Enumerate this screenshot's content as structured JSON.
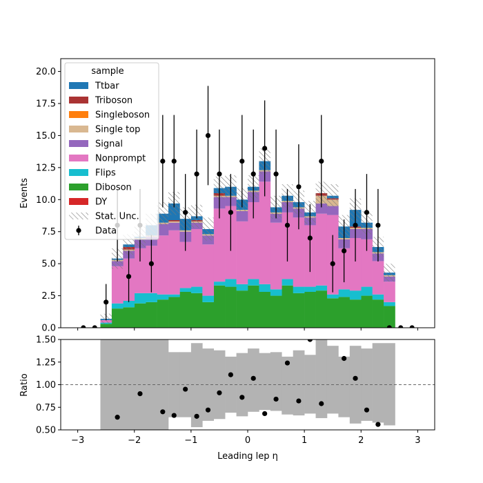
{
  "chart_data": [
    {
      "type": "stacked-histogram",
      "ylabel": "Events",
      "ylim": [
        0,
        21.0
      ],
      "yticks": [
        0.0,
        2.5,
        5.0,
        7.5,
        10.0,
        12.5,
        15.0,
        17.5,
        20.0
      ],
      "ytick_labels": [
        "0.0",
        "2.5",
        "5.0",
        "7.5",
        "10.0",
        "12.5",
        "15.0",
        "17.5",
        "20.0"
      ],
      "xlim": [
        -3.3,
        3.3
      ],
      "bin_edges": [
        -2.6,
        -2.4,
        -2.2,
        -2.0,
        -1.8,
        -1.6,
        -1.4,
        -1.2,
        -1.0,
        -0.8,
        -0.6,
        -0.4,
        -0.2,
        0.0,
        0.2,
        0.4,
        0.6,
        0.8,
        1.0,
        1.2,
        1.4,
        1.6,
        1.8,
        2.0,
        2.2,
        2.4,
        2.6
      ],
      "series": [
        {
          "name": "DY",
          "color": "#d62728",
          "values": [
            0,
            0,
            0,
            0,
            0,
            0,
            0,
            0,
            0,
            0,
            0,
            0,
            0,
            0,
            0,
            0,
            0,
            0,
            0,
            0,
            0,
            0,
            0,
            0,
            0,
            0
          ]
        },
        {
          "name": "Diboson",
          "color": "#2ca02c",
          "values": [
            0.3,
            1.5,
            1.6,
            1.9,
            2.0,
            2.2,
            2.4,
            2.8,
            2.7,
            2.0,
            3.3,
            3.2,
            2.9,
            3.3,
            2.8,
            2.5,
            3.3,
            2.7,
            2.8,
            2.9,
            2.3,
            2.4,
            2.2,
            2.5,
            2.2,
            1.7
          ]
        },
        {
          "name": "Flips",
          "color": "#17becf",
          "values": [
            0.1,
            0.4,
            0.5,
            0.8,
            0.7,
            0.4,
            0.2,
            0.3,
            0.5,
            0.5,
            0.3,
            0.6,
            0.5,
            0.5,
            0.6,
            0.5,
            0.5,
            0.5,
            0.4,
            0.4,
            0.3,
            0.6,
            0.7,
            0.7,
            0.4,
            0.3
          ]
        },
        {
          "name": "Nonprompt",
          "color": "#e377c2",
          "values": [
            0.2,
            2.9,
            3.3,
            3.5,
            3.7,
            4.6,
            5.0,
            3.6,
            4.5,
            4.0,
            5.7,
            5.7,
            4.9,
            6.0,
            8.0,
            5.2,
            5.2,
            5.4,
            4.8,
            5.6,
            6.2,
            3.2,
            4.1,
            3.7,
            2.6,
            1.6
          ]
        },
        {
          "name": "Signal",
          "color": "#9467bd",
          "values": [
            0.0,
            0.4,
            0.6,
            0.7,
            0.7,
            0.9,
            0.6,
            0.8,
            0.5,
            0.7,
            0.9,
            0.7,
            0.8,
            0.8,
            0.8,
            0.7,
            0.8,
            0.7,
            0.6,
            0.8,
            0.7,
            0.7,
            0.7,
            0.8,
            0.6,
            0.4
          ]
        },
        {
          "name": "Single top",
          "color": "#d9b891",
          "values": [
            0.0,
            0.1,
            0.1,
            0.1,
            0.1,
            0.1,
            0.1,
            0.1,
            0.1,
            0.1,
            0.1,
            0.1,
            0.1,
            0.1,
            0.1,
            0.1,
            0.1,
            0.1,
            0.1,
            0.6,
            0.5,
            0.1,
            0.1,
            0.1,
            0.1,
            0.1
          ]
        },
        {
          "name": "Singleboson",
          "color": "#ff7f0e",
          "values": [
            0,
            0,
            0,
            0,
            0,
            0,
            0,
            0,
            0,
            0,
            0,
            0,
            0,
            0,
            0,
            0,
            0,
            0,
            0,
            0,
            0,
            0,
            0,
            0,
            0,
            0
          ]
        },
        {
          "name": "Triboson",
          "color": "#aa3333",
          "values": [
            0.0,
            0.0,
            0.2,
            0.0,
            0.0,
            0.0,
            0.1,
            0.0,
            0.1,
            0.0,
            0.2,
            0.0,
            0.0,
            0.0,
            0.0,
            0.0,
            0.0,
            0.0,
            0.0,
            0.2,
            0.1,
            0.0,
            0.1,
            0.0,
            0.0,
            0.0
          ]
        },
        {
          "name": "Ttbar",
          "color": "#1f77b4",
          "values": [
            0.1,
            0.1,
            0.2,
            0.1,
            0.8,
            0.7,
            1.3,
            0.9,
            0.3,
            0.4,
            0.4,
            0.7,
            0.8,
            0.3,
            0.7,
            0.4,
            0.4,
            0.4,
            0.3,
            0.0,
            0.2,
            0.9,
            1.3,
            0.4,
            0.4,
            0.2
          ]
        }
      ],
      "unc_label": "Stat. Unc.",
      "unc_values": [
        0.4,
        0.8,
        0.8,
        0.8,
        0.9,
        0.9,
        0.9,
        0.9,
        0.9,
        0.9,
        0.9,
        0.9,
        0.9,
        0.9,
        1.0,
        0.9,
        0.9,
        0.9,
        0.9,
        0.9,
        0.9,
        0.9,
        0.9,
        0.9,
        0.8,
        0.7
      ],
      "data_label": "Data",
      "data_x": [
        -2.9,
        -2.7,
        -2.5,
        -2.3,
        -2.1,
        -1.9,
        -1.7,
        -1.5,
        -1.3,
        -1.1,
        -0.9,
        -0.7,
        -0.5,
        -0.3,
        -0.1,
        0.1,
        0.3,
        0.5,
        0.7,
        0.9,
        1.1,
        1.3,
        1.5,
        1.7,
        1.9,
        2.1,
        2.3,
        2.5,
        2.7,
        2.9
      ],
      "data_y": [
        0,
        0,
        2,
        8,
        4,
        8,
        5,
        13,
        13,
        9,
        12,
        15,
        12,
        9,
        13,
        12,
        14,
        12,
        8,
        11,
        7,
        13,
        5,
        6,
        8,
        9,
        8,
        0,
        0,
        0
      ],
      "legend": {
        "title": "sample",
        "placement": "upper-left"
      }
    },
    {
      "type": "scatter",
      "xlabel": "Leading lep η",
      "ylabel": "Ratio",
      "ylim": [
        0.5,
        1.5
      ],
      "yticks": [
        0.5,
        0.75,
        1.0,
        1.25,
        1.5
      ],
      "ytick_labels": [
        "0.50",
        "0.75",
        "1.00",
        "1.25",
        "1.50"
      ],
      "xlim": [
        -3.3,
        3.3
      ],
      "xticks": [
        -3,
        -2,
        -1,
        0,
        1,
        2,
        3
      ],
      "xtick_labels": [
        "−3",
        "−2",
        "−1",
        "0",
        "1",
        "2",
        "3"
      ],
      "reference_line": 1.0,
      "band_values": [
        [
          0.0,
          2.0
        ],
        [
          0.36,
          1.5
        ],
        [
          0.35,
          1.5
        ],
        [
          0.34,
          1.5
        ],
        [
          0.35,
          1.5
        ],
        [
          0.38,
          1.5
        ],
        [
          0.64,
          1.36
        ],
        [
          0.64,
          1.36
        ],
        [
          0.53,
          1.46
        ],
        [
          0.6,
          1.4
        ],
        [
          0.62,
          1.38
        ],
        [
          0.69,
          1.31
        ],
        [
          0.65,
          1.35
        ],
        [
          0.7,
          1.4
        ],
        [
          0.72,
          1.35
        ],
        [
          0.71,
          1.36
        ],
        [
          0.67,
          1.31
        ],
        [
          0.66,
          1.38
        ],
        [
          0.68,
          1.33
        ],
        [
          0.63,
          1.5
        ],
        [
          0.68,
          1.43
        ],
        [
          0.64,
          1.31
        ],
        [
          0.57,
          1.43
        ],
        [
          0.6,
          1.4
        ],
        [
          0.58,
          1.46
        ],
        [
          0.55,
          1.46
        ]
      ],
      "x": [
        -2.3,
        -1.9,
        -1.5,
        -1.3,
        -1.1,
        -0.9,
        -0.7,
        -0.5,
        -0.3,
        -0.1,
        0.1,
        0.3,
        0.5,
        0.7,
        0.9,
        1.1,
        1.3,
        1.7,
        1.9,
        2.1,
        2.3
      ],
      "y": [
        0.64,
        0.9,
        0.7,
        0.66,
        0.95,
        0.65,
        0.72,
        0.91,
        1.11,
        0.86,
        1.07,
        0.68,
        0.84,
        1.24,
        0.82,
        1.5,
        0.79,
        1.29,
        1.07,
        0.72,
        0.56
      ]
    }
  ]
}
